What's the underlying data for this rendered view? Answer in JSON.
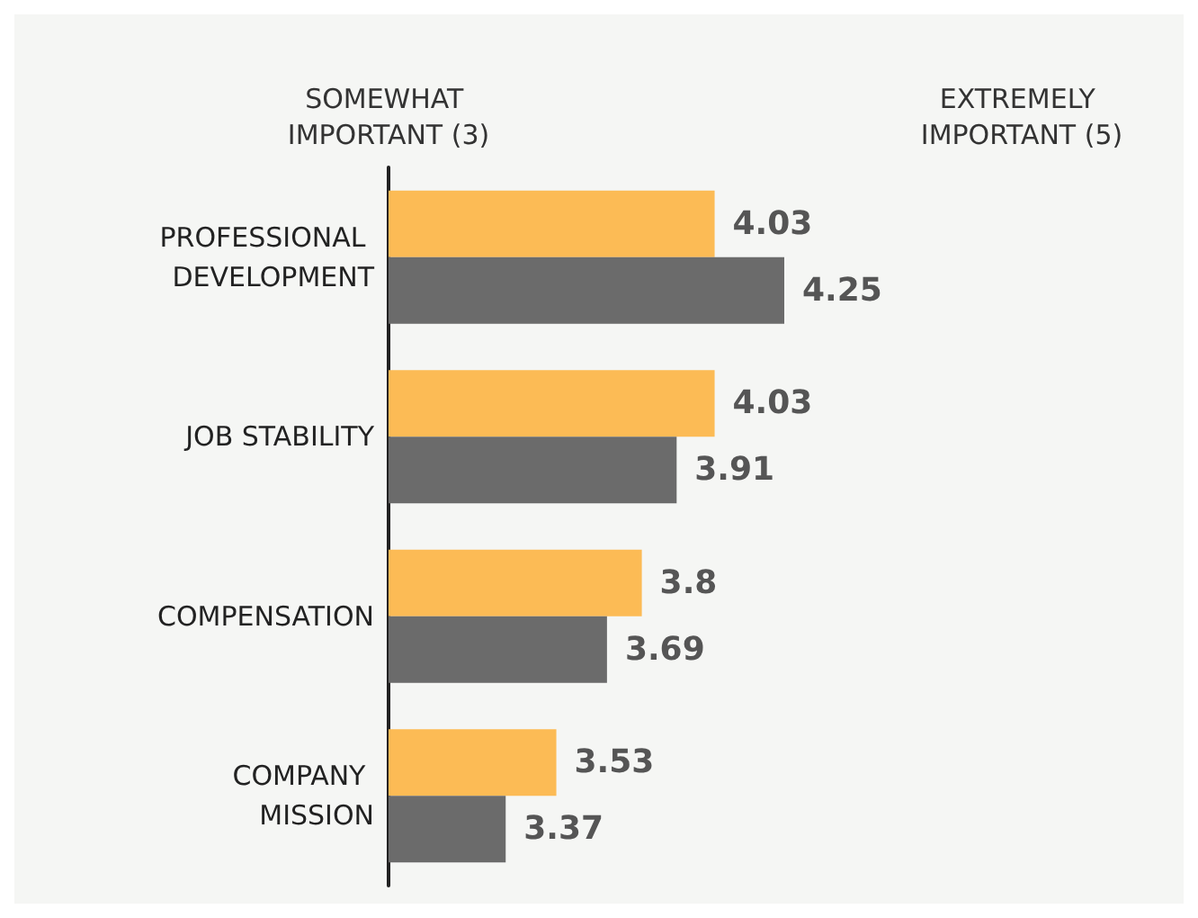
{
  "chart_data": {
    "type": "bar",
    "orientation": "horizontal",
    "categories": [
      "PROFESSIONAL DEVELOPMENT",
      "JOB STABILITY",
      "COMPENSATION",
      "COMPANY MISSION"
    ],
    "series": [
      {
        "color": "#fcbb55",
        "values": [
          4.03,
          4.03,
          3.8,
          3.53
        ]
      },
      {
        "color": "#6b6b6b",
        "values": [
          4.25,
          3.91,
          3.69,
          3.37
        ]
      }
    ],
    "xlim": [
      3,
      5
    ],
    "xticks": [
      {
        "value": 3,
        "label": "SOMEWHAT IMPORTANT (3)"
      },
      {
        "value": 5,
        "label": "EXTREMELY IMPORTANT (5)"
      }
    ],
    "data_labels": true,
    "grid": false
  }
}
